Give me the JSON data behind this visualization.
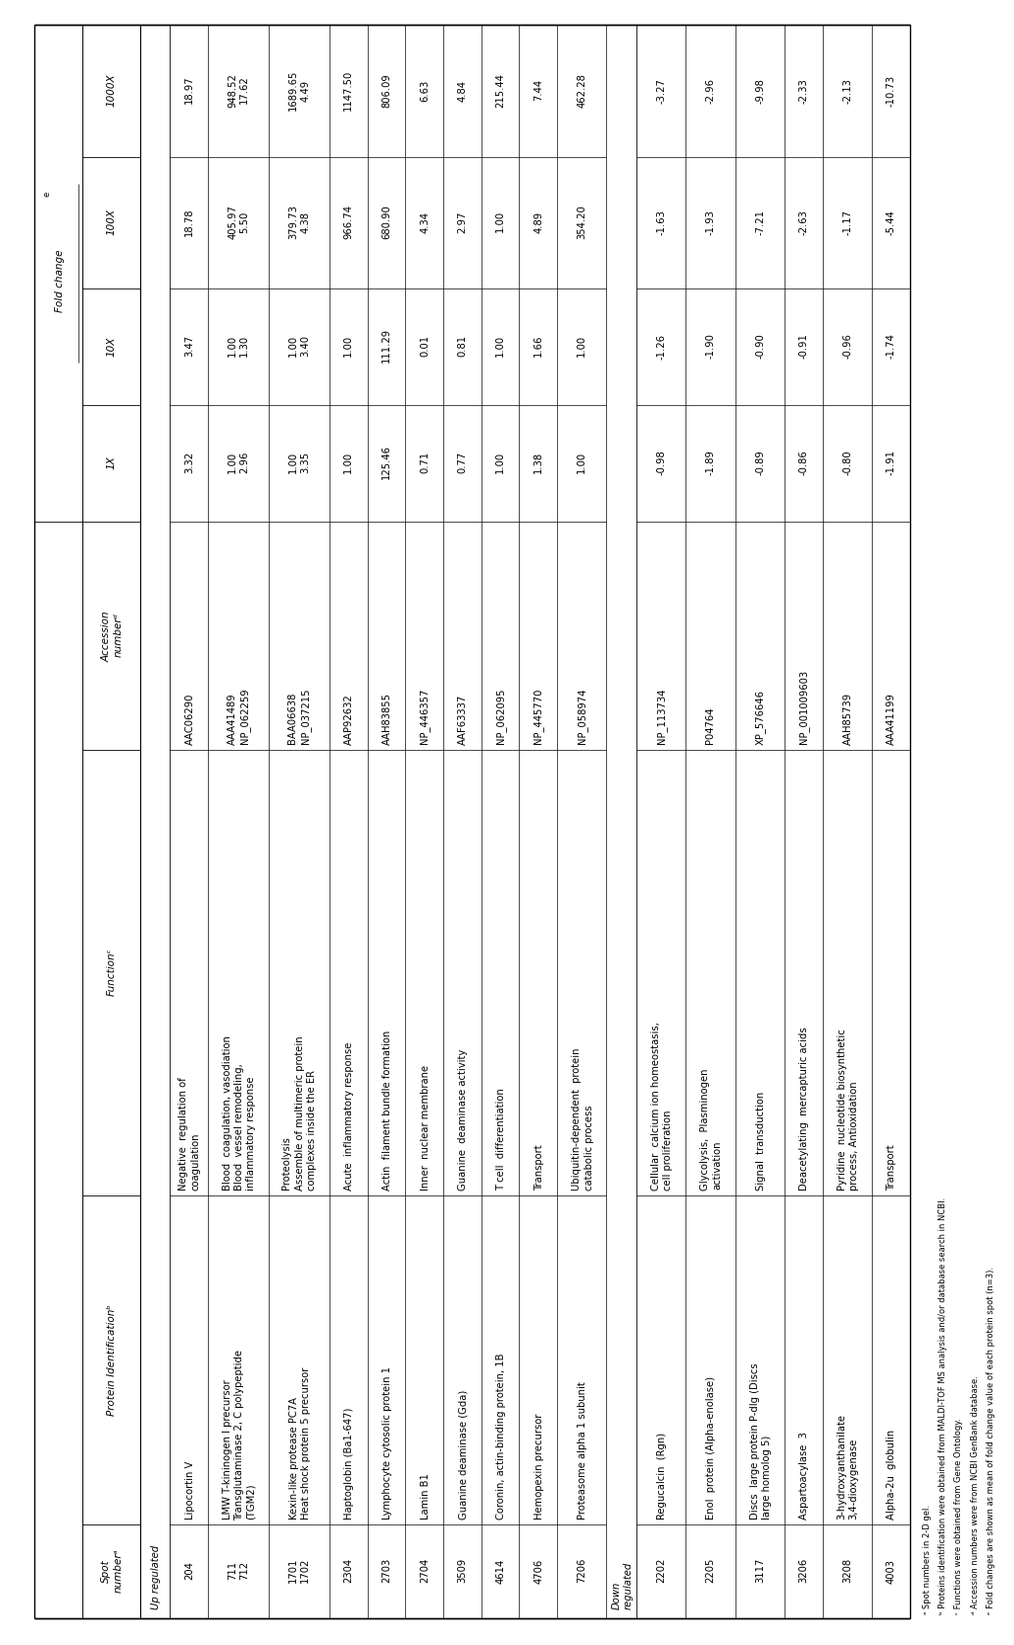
{
  "rows": [
    {
      "spot": "204",
      "protein": "Lipocortin V",
      "function": "Negative  regulation of\ncoagulation",
      "accession": "AAC06290",
      "v1x": "3.32",
      "v10x": "3.47",
      "v100x": "18.78",
      "v1000x": "18.97",
      "section": "up"
    },
    {
      "spot": "711\n712",
      "protein": "LMW T-kininogen I precursor\nTransglutaminase 2, C polypeptide\n(TGM2)",
      "function": "Blood  coagulation, vasodiation\nBlood  vessel remodeling,\ninflammatory response",
      "accession": "AAA41489\nNP_062259",
      "v1x": "1.00\n2.96",
      "v10x": "1.00\n1.30",
      "v100x": "405.97\n5.50",
      "v1000x": "948.52\n17.62",
      "section": "up"
    },
    {
      "spot": "1701\n1702",
      "protein": "Kexin-like protease PC7A\nHeat shock protein 5 precursor",
      "function": "Proteolysis\nAssemble of multimeric protein\ncomplexes inside the ER",
      "accession": "BAA06638\nNP_037215",
      "v1x": "1.00\n3.35",
      "v10x": "1.00\n3.40",
      "v100x": "379.73\n4.38",
      "v1000x": "1689.65\n4.49",
      "section": "up"
    },
    {
      "spot": "2304",
      "protein": "Haptoglobin (Ba1-647)",
      "function": "Acute  inflammatory response",
      "accession": "AAP92632",
      "v1x": "1.00",
      "v10x": "1.00",
      "v100x": "966.74",
      "v1000x": "1147.50",
      "section": "up"
    },
    {
      "spot": "2703",
      "protein": "Lymphocyte cytosolic protein 1",
      "function": "Actin  filament bundle formation",
      "accession": "AAH83855",
      "v1x": "125.46",
      "v10x": "111.29",
      "v100x": "680.90",
      "v1000x": "806.09",
      "section": "up"
    },
    {
      "spot": "2704",
      "protein": "Lamin B1",
      "function": "Inner  nuclear membrane",
      "accession": "NP_446357",
      "v1x": "0.71",
      "v10x": "0.01",
      "v100x": "4.34",
      "v1000x": "6.63",
      "section": "up"
    },
    {
      "spot": "3509",
      "protein": "Guanine deaminase (Gda)",
      "function": "Guanine  deaminase activity",
      "accession": "AAF63337",
      "v1x": "0.77",
      "v10x": "0.81",
      "v100x": "2.97",
      "v1000x": "4.84",
      "section": "up"
    },
    {
      "spot": "4614",
      "protein": "Coronin, actin-binding protein, 1B",
      "function": "T cell  differentiation",
      "accession": "NP_062095",
      "v1x": "1.00",
      "v10x": "1.00",
      "v100x": "1.00",
      "v1000x": "215.44",
      "section": "up"
    },
    {
      "spot": "4706",
      "protein": "Hemopexin precursor",
      "function": "Transport",
      "accession": "NP_445770",
      "v1x": "1.38",
      "v10x": "1.66",
      "v100x": "4.89",
      "v1000x": "7.44",
      "section": "up"
    },
    {
      "spot": "7206",
      "protein": "Proteasome alpha 1 subunit",
      "function": "Ubiquitin-dependent  protein\ncatabolic process",
      "accession": "NP_058974",
      "v1x": "1.00",
      "v10x": "1.00",
      "v100x": "354.20",
      "v1000x": "462.28",
      "section": "up"
    },
    {
      "spot": "2202",
      "protein": "Regucalcin  (Rgn)",
      "function": "Cellular  calcium ion homeostasis,\ncell proliferation",
      "accession": "NP_113734",
      "v1x": "-0.98",
      "v10x": "-1.26",
      "v100x": "-1.63",
      "v1000x": "-3.27",
      "section": "down"
    },
    {
      "spot": "2205",
      "protein": "Enol  protein (Alpha-enolase)",
      "function": "Glycolysis,  Plasminogen\nactivation",
      "accession": "P04764",
      "v1x": "-1.89",
      "v10x": "-1.90",
      "v100x": "-1.93",
      "v1000x": "-2.96",
      "section": "down"
    },
    {
      "spot": "3117",
      "protein": "Discs  large protein P-dlg (Discs\nlarge homolog 5)",
      "function": "Signal  transduction",
      "accession": "XP_576646",
      "v1x": "-0.89",
      "v10x": "-0.90",
      "v100x": "-7.21",
      "v1000x": "-9.98",
      "section": "down"
    },
    {
      "spot": "3206",
      "protein": "Aspartoacylase  3",
      "function": "Deacetylating  mercapturic acids",
      "accession": "NP_001009603",
      "v1x": "-0.86",
      "v10x": "-0.91",
      "v100x": "-2.63",
      "v1000x": "-2.33",
      "section": "down"
    },
    {
      "spot": "3208",
      "protein": "3-hydroxyanthanilate\n3,4-dioxygenase",
      "function": "Pyridine  nucleotide biosynthetic\nprocess, Antioxidation",
      "accession": "AAH85739",
      "v1x": "-0.80",
      "v10x": "-0.96",
      "v100x": "-1.17",
      "v1000x": "-2.13",
      "section": "down"
    },
    {
      "spot": "4003",
      "protein": "Alpha-2u  globulin",
      "function": "Transport",
      "accession": "AAA41199",
      "v1x": "-1.91",
      "v10x": "-1.74",
      "v100x": "-5.44",
      "v1000x": "-10.73",
      "section": "down"
    }
  ],
  "footnotes": [
    "ᵃ Spot numbers in 2-D gel.",
    "ᵇ Proteins identification were obtained from MALDI-TOF MS analysis and/or database search in NCBI.",
    "ᶜ Functions were obtained from Gene Ontology.",
    "ᵈ Accession numbers were from NCBI GenBank database.",
    "ᵉ Fold changes are shown as mean of fold change value of each protein spot (n=3)."
  ],
  "col_headers": [
    "Spot\nnumberᵃ",
    "Protein Identificationᵇ",
    "Functionᶜ",
    "Accession\nnumberᵈ",
    "1X",
    "10X",
    "100X",
    "1000X"
  ],
  "fold_change_header": "Fold changeᵉ"
}
